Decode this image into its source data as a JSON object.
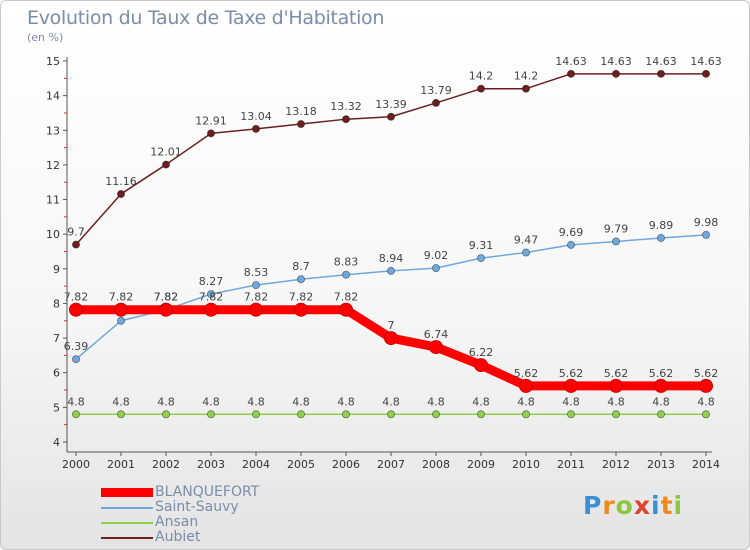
{
  "chart_data": {
    "type": "line",
    "title": "Evolution du Taux de Taxe d'Habitation",
    "subtitle": "(en %)",
    "x": [
      "2000",
      "2001",
      "2002",
      "2003",
      "2004",
      "2005",
      "2006",
      "2007",
      "2008",
      "2009",
      "2010",
      "2011",
      "2012",
      "2013",
      "2014"
    ],
    "ylim": [
      4,
      15
    ],
    "yticks": [
      4,
      5,
      6,
      7,
      8,
      9,
      10,
      11,
      12,
      13,
      14,
      15
    ],
    "grid": false,
    "legend_position": "bottom-left",
    "series": [
      {
        "name": "BLANQUEFORT",
        "color": "#ff0000",
        "values": [
          7.82,
          7.82,
          7.82,
          7.82,
          7.82,
          7.82,
          7.82,
          7,
          6.74,
          6.22,
          5.62,
          5.62,
          5.62,
          5.62,
          5.62
        ],
        "labels": [
          "7.82",
          "7.82",
          "7.82",
          "7.82",
          "7.82",
          "7.82",
          "7.82",
          "7",
          "6.74",
          "6.22",
          "5.62",
          "5.62",
          "5.62",
          "5.62",
          "5.62"
        ]
      },
      {
        "name": "Saint-Sauvy",
        "color": "#6fa8dc",
        "values": [
          6.39,
          7.5,
          7.82,
          8.27,
          8.53,
          8.7,
          8.83,
          8.94,
          9.02,
          9.31,
          9.47,
          9.69,
          9.79,
          9.89,
          9.98
        ],
        "labels": [
          "6.39",
          "",
          "7.82",
          "8.27",
          "8.53",
          "8.7",
          "8.83",
          "8.94",
          "9.02",
          "9.31",
          "9.47",
          "9.69",
          "9.79",
          "9.89",
          "9.98"
        ]
      },
      {
        "name": "Ansan",
        "color": "#8fd14f",
        "values": [
          4.8,
          4.8,
          4.8,
          4.8,
          4.8,
          4.8,
          4.8,
          4.8,
          4.8,
          4.8,
          4.8,
          4.8,
          4.8,
          4.8,
          4.8
        ],
        "labels": [
          "4.8",
          "4.8",
          "4.8",
          "4.8",
          "4.8",
          "4.8",
          "4.8",
          "4.8",
          "4.8",
          "4.8",
          "4.8",
          "4.8",
          "4.8",
          "4.8",
          "4.8"
        ]
      },
      {
        "name": "Aubiet",
        "color": "#6b1f1f",
        "values": [
          9.7,
          11.16,
          12.01,
          12.91,
          13.04,
          13.18,
          13.32,
          13.39,
          13.79,
          14.2,
          14.2,
          14.63,
          14.63,
          14.63,
          14.63
        ],
        "labels": [
          "9.7",
          "11.16",
          "12.01",
          "12.91",
          "13.04",
          "13.18",
          "13.32",
          "13.39",
          "13.79",
          "14.2",
          "14.2",
          "14.63",
          "14.63",
          "14.63",
          "14.63"
        ]
      }
    ]
  },
  "logo": {
    "text": "Proxiti",
    "colors": [
      "#3b8fd6",
      "#f08a1c",
      "#8cc63f",
      "#e2412e",
      "#3b8fd6",
      "#f08a1c",
      "#8cc63f"
    ]
  }
}
